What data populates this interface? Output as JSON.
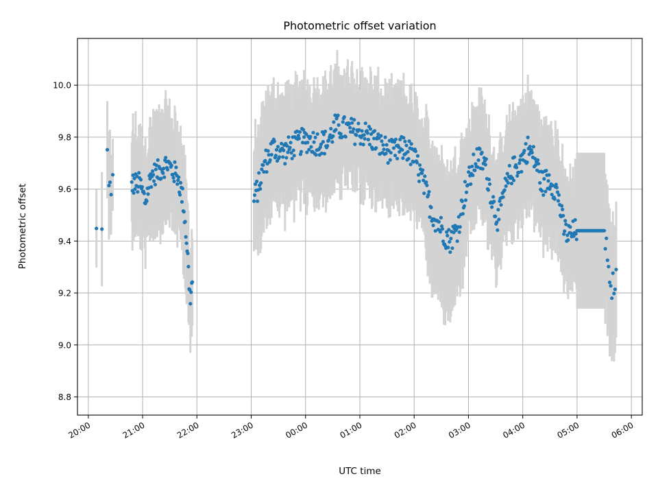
{
  "chart_data": {
    "type": "scatter",
    "title": "Photometric offset variation",
    "xlabel": "UTC time",
    "ylabel": "Photometric offset",
    "x_unit": "UTC hours (20 = 20:00; values above 24 are after midnight)",
    "xlim": [
      19.8,
      30.2
    ],
    "ylim": [
      8.73,
      10.18
    ],
    "xticks": [
      {
        "value": 20,
        "label": "20:00"
      },
      {
        "value": 21,
        "label": "21:00"
      },
      {
        "value": 22,
        "label": "22:00"
      },
      {
        "value": 23,
        "label": "23:00"
      },
      {
        "value": 24,
        "label": "00:00"
      },
      {
        "value": 25,
        "label": "01:00"
      },
      {
        "value": 26,
        "label": "02:00"
      },
      {
        "value": 27,
        "label": "03:00"
      },
      {
        "value": 28,
        "label": "04:00"
      },
      {
        "value": 29,
        "label": "05:00"
      },
      {
        "value": 30,
        "label": "06:00"
      }
    ],
    "yticks": [
      {
        "value": 8.8,
        "label": "8.8"
      },
      {
        "value": 9.0,
        "label": "9.0"
      },
      {
        "value": 9.2,
        "label": "9.2"
      },
      {
        "value": 9.4,
        "label": "9.4"
      },
      {
        "value": 9.6,
        "label": "9.6"
      },
      {
        "value": 9.8,
        "label": "9.8"
      },
      {
        "value": 10.0,
        "label": "10.0"
      }
    ],
    "grid": true,
    "legend": "none",
    "marker_color": "#1f77b4",
    "errorbar_color": "#d3d3d3",
    "anchors": [
      [
        20.15,
        9.43
      ],
      [
        20.25,
        9.43
      ],
      [
        20.35,
        9.73
      ],
      [
        20.42,
        9.55
      ],
      [
        20.45,
        9.62
      ],
      [
        20.8,
        9.62
      ],
      [
        20.95,
        9.62
      ],
      [
        21.05,
        9.55
      ],
      [
        21.15,
        9.65
      ],
      [
        21.3,
        9.67
      ],
      [
        21.45,
        9.7
      ],
      [
        21.55,
        9.67
      ],
      [
        21.65,
        9.65
      ],
      [
        21.75,
        9.55
      ],
      [
        21.82,
        9.38
      ],
      [
        21.87,
        9.18
      ],
      [
        21.92,
        9.24
      ],
      [
        23.05,
        9.56
      ],
      [
        23.15,
        9.62
      ],
      [
        23.25,
        9.7
      ],
      [
        23.4,
        9.76
      ],
      [
        23.6,
        9.74
      ],
      [
        23.8,
        9.77
      ],
      [
        24.0,
        9.79
      ],
      [
        24.2,
        9.78
      ],
      [
        24.4,
        9.78
      ],
      [
        24.55,
        9.84
      ],
      [
        24.75,
        9.83
      ],
      [
        24.95,
        9.82
      ],
      [
        25.15,
        9.81
      ],
      [
        25.35,
        9.77
      ],
      [
        25.6,
        9.74
      ],
      [
        25.85,
        9.76
      ],
      [
        26.05,
        9.7
      ],
      [
        26.2,
        9.6
      ],
      [
        26.35,
        9.5
      ],
      [
        26.5,
        9.45
      ],
      [
        26.65,
        9.4
      ],
      [
        26.8,
        9.45
      ],
      [
        26.95,
        9.6
      ],
      [
        27.15,
        9.72
      ],
      [
        27.3,
        9.7
      ],
      [
        27.45,
        9.55
      ],
      [
        27.55,
        9.48
      ],
      [
        27.65,
        9.58
      ],
      [
        27.8,
        9.67
      ],
      [
        27.95,
        9.7
      ],
      [
        28.1,
        9.76
      ],
      [
        28.25,
        9.7
      ],
      [
        28.35,
        9.62
      ],
      [
        28.5,
        9.64
      ],
      [
        28.65,
        9.58
      ],
      [
        28.75,
        9.45
      ],
      [
        28.85,
        9.42
      ],
      [
        29.0,
        9.44
      ],
      [
        29.5,
        9.44
      ],
      [
        29.55,
        9.35
      ],
      [
        29.6,
        9.2
      ],
      [
        29.7,
        9.25
      ]
    ],
    "gap": [
      21.95,
      23.03
    ]
  }
}
